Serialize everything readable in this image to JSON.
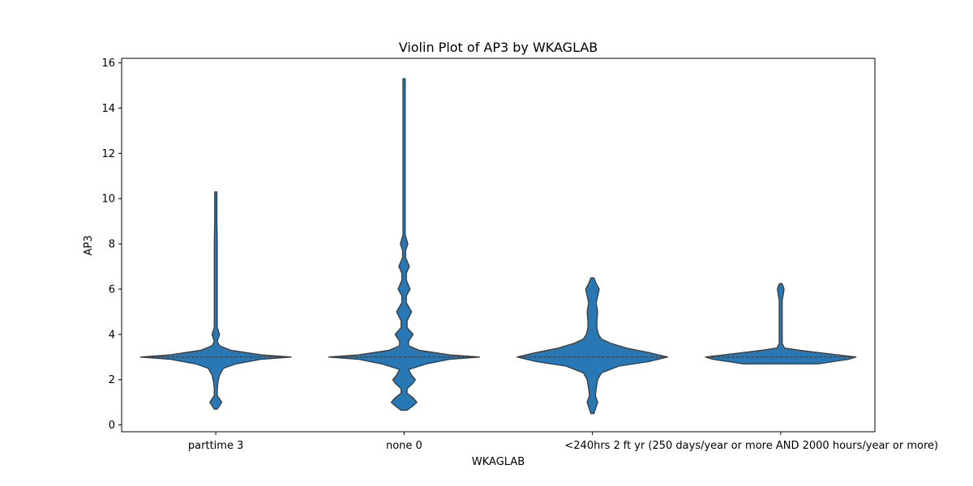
{
  "chart_data": {
    "type": "violin",
    "title": "Violin Plot of AP3 by WKAGLAB",
    "xlabel": "WKAGLAB",
    "ylabel": "AP3",
    "ylim": [
      -0.3,
      16.2
    ],
    "yticks": [
      0,
      2,
      4,
      6,
      8,
      10,
      12,
      14,
      16
    ],
    "grid": false,
    "color": "#2878b5",
    "edge_color": "#3a3a3a",
    "categories": [
      "parttime 3",
      "none 0",
      "<240hrs 2",
      "ft yr (250 days/year or more AND 2000 hours/year or more)"
    ],
    "violins": [
      {
        "category": "parttime 3",
        "median": 3,
        "min": 0.7,
        "max": 10.3,
        "density": [
          [
            0.7,
            0.02
          ],
          [
            0.85,
            0.05
          ],
          [
            1.0,
            0.08
          ],
          [
            1.15,
            0.05
          ],
          [
            1.3,
            0.02
          ],
          [
            1.6,
            0.02
          ],
          [
            1.9,
            0.03
          ],
          [
            2.2,
            0.05
          ],
          [
            2.5,
            0.1
          ],
          [
            2.7,
            0.27
          ],
          [
            2.9,
            0.6
          ],
          [
            3.0,
            1.0
          ],
          [
            3.1,
            0.6
          ],
          [
            3.3,
            0.2
          ],
          [
            3.5,
            0.05
          ],
          [
            3.7,
            0.02
          ],
          [
            4.0,
            0.05
          ],
          [
            4.3,
            0.02
          ],
          [
            5.0,
            0.02
          ],
          [
            6.0,
            0.02
          ],
          [
            7.0,
            0.02
          ],
          [
            8.0,
            0.02
          ],
          [
            9.0,
            0.015
          ],
          [
            10.3,
            0.015
          ]
        ]
      },
      {
        "category": "none 0",
        "median": 3,
        "min": 0.65,
        "max": 15.3,
        "density": [
          [
            0.65,
            0.04
          ],
          [
            0.85,
            0.12
          ],
          [
            1.0,
            0.17
          ],
          [
            1.2,
            0.12
          ],
          [
            1.4,
            0.04
          ],
          [
            1.6,
            0.04
          ],
          [
            1.85,
            0.12
          ],
          [
            2.0,
            0.15
          ],
          [
            2.2,
            0.1
          ],
          [
            2.45,
            0.06
          ],
          [
            2.7,
            0.3
          ],
          [
            2.9,
            0.6
          ],
          [
            3.0,
            1.0
          ],
          [
            3.1,
            0.6
          ],
          [
            3.3,
            0.2
          ],
          [
            3.5,
            0.06
          ],
          [
            3.7,
            0.06
          ],
          [
            4.0,
            0.12
          ],
          [
            4.3,
            0.04
          ],
          [
            4.6,
            0.04
          ],
          [
            5.0,
            0.1
          ],
          [
            5.4,
            0.03
          ],
          [
            5.7,
            0.03
          ],
          [
            6.0,
            0.08
          ],
          [
            6.4,
            0.03
          ],
          [
            6.7,
            0.03
          ],
          [
            7.0,
            0.07
          ],
          [
            7.4,
            0.02
          ],
          [
            7.7,
            0.02
          ],
          [
            8.0,
            0.05
          ],
          [
            8.4,
            0.015
          ],
          [
            10.0,
            0.015
          ],
          [
            12.0,
            0.015
          ],
          [
            15.3,
            0.015
          ]
        ]
      },
      {
        "category": "<240hrs 2",
        "median": 3,
        "min": 0.5,
        "max": 6.5,
        "density": [
          [
            0.5,
            0.02
          ],
          [
            0.7,
            0.04
          ],
          [
            1.0,
            0.07
          ],
          [
            1.3,
            0.04
          ],
          [
            1.6,
            0.05
          ],
          [
            2.0,
            0.07
          ],
          [
            2.3,
            0.12
          ],
          [
            2.6,
            0.35
          ],
          [
            2.8,
            0.75
          ],
          [
            3.0,
            1.0
          ],
          [
            3.2,
            0.75
          ],
          [
            3.4,
            0.45
          ],
          [
            3.6,
            0.25
          ],
          [
            3.8,
            0.12
          ],
          [
            4.0,
            0.08
          ],
          [
            4.3,
            0.06
          ],
          [
            4.6,
            0.06
          ],
          [
            5.0,
            0.07
          ],
          [
            5.4,
            0.05
          ],
          [
            5.7,
            0.07
          ],
          [
            6.0,
            0.09
          ],
          [
            6.25,
            0.05
          ],
          [
            6.5,
            0.02
          ]
        ]
      },
      {
        "category": "ft yr (250 days/year or more AND 2000 hours/year or more)",
        "median": 3,
        "min": 2.7,
        "max": 6.25,
        "density": [
          [
            2.7,
            0.5
          ],
          [
            2.8,
            0.7
          ],
          [
            2.9,
            0.9
          ],
          [
            3.0,
            1.0
          ],
          [
            3.1,
            0.75
          ],
          [
            3.2,
            0.5
          ],
          [
            3.3,
            0.25
          ],
          [
            3.4,
            0.05
          ],
          [
            3.6,
            0.02
          ],
          [
            4.0,
            0.02
          ],
          [
            4.5,
            0.02
          ],
          [
            5.0,
            0.02
          ],
          [
            5.5,
            0.02
          ],
          [
            5.8,
            0.035
          ],
          [
            6.0,
            0.045
          ],
          [
            6.15,
            0.03
          ],
          [
            6.25,
            0.015
          ]
        ]
      }
    ]
  }
}
